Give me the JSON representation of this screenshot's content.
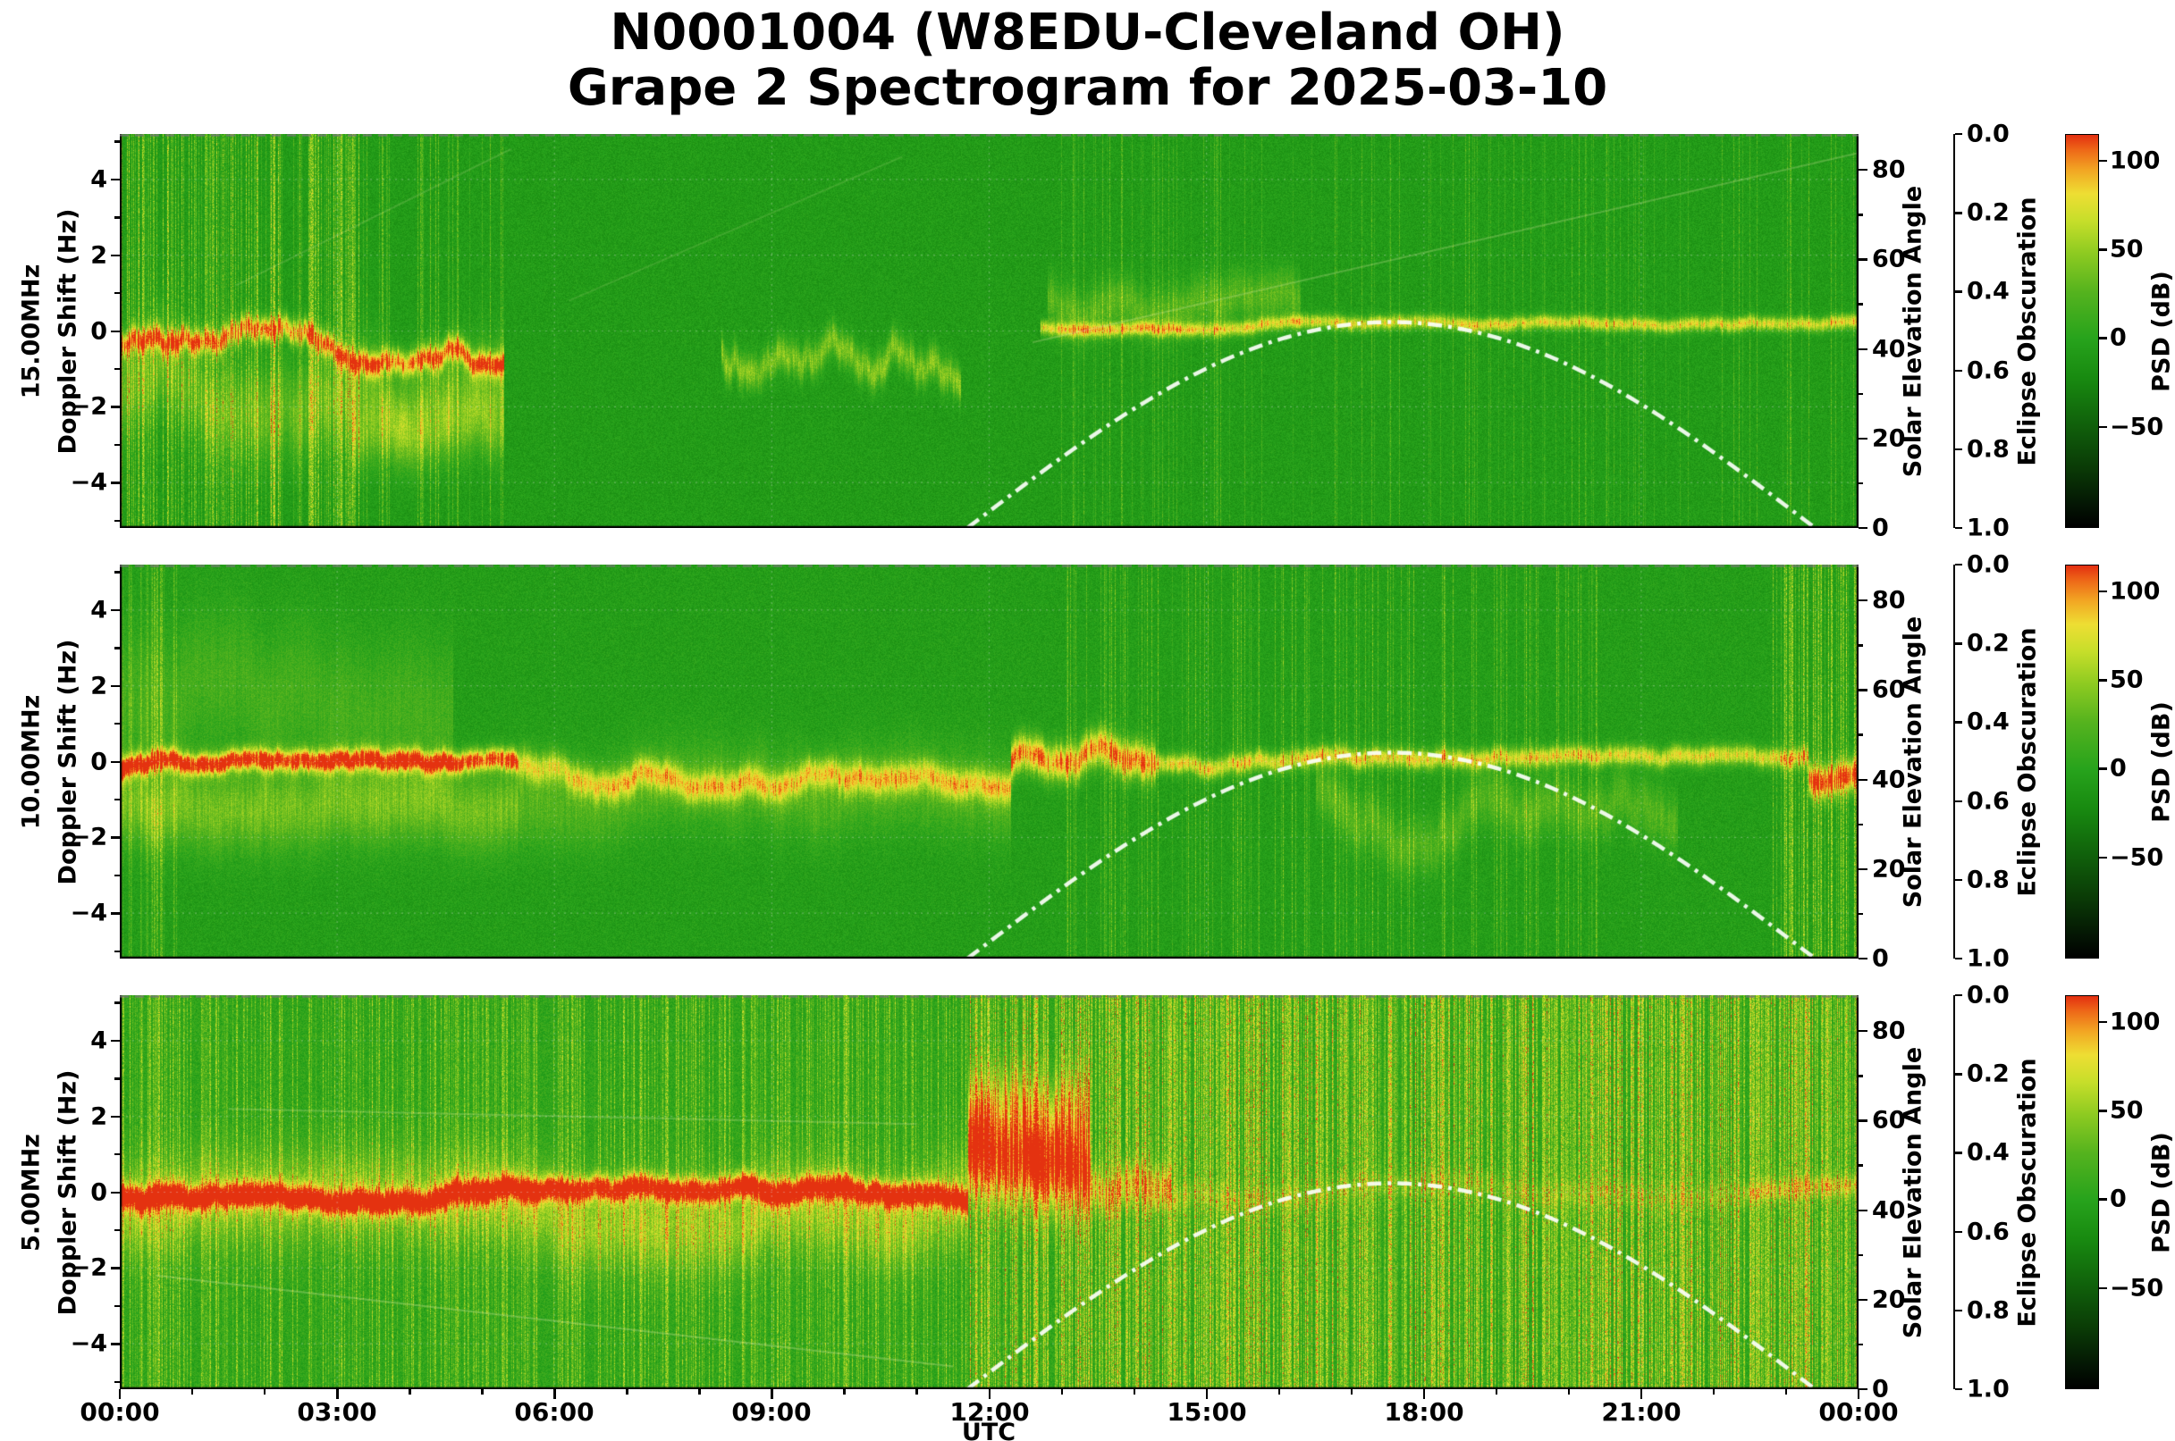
{
  "figure": {
    "title_line1": "N0001004 (W8EDU-Cleveland OH)",
    "title_line2": "Grape 2 Spectrogram for 2025-03-10"
  },
  "axes": {
    "x_label": "UTC",
    "x_ticks": [
      "00:00",
      "03:00",
      "06:00",
      "09:00",
      "12:00",
      "15:00",
      "18:00",
      "21:00",
      "00:00"
    ],
    "doppler_ticks": [
      "4",
      "2",
      "0",
      "−2",
      "−4"
    ],
    "solar_label": "Solar Elevation Angle",
    "solar_ticks": [
      "80",
      "60",
      "40",
      "20",
      "0"
    ],
    "eclipse_label": "Eclipse Obscuration",
    "eclipse_ticks": [
      "0.0",
      "0.2",
      "0.4",
      "0.6",
      "0.8",
      "1.0"
    ],
    "psd_label": "PSD (dB)",
    "psd_ticks": [
      "100",
      "50",
      "0",
      "−50"
    ]
  },
  "panels": [
    {
      "freq_label": "15.00MHz",
      "ylabel": "Doppler Shift (Hz)"
    },
    {
      "freq_label": "10.00MHz",
      "ylabel": "Doppler Shift (Hz)"
    },
    {
      "freq_label": "5.00MHz",
      "ylabel": "Doppler Shift (Hz)"
    }
  ],
  "chart_data": {
    "type": "heatmap",
    "subtype": "radio-doppler-spectrogram",
    "title": "N0001004 (W8EDU-Cleveland OH) Grape 2 Spectrogram for 2025-03-10",
    "station_node": "N0001004",
    "callsign": "W8EDU",
    "location": "Cleveland OH",
    "instrument": "Grape 2",
    "date": "2025-03-10",
    "grid": true,
    "x": {
      "label": "UTC",
      "range_hours": [
        0,
        24
      ],
      "tick_hours": [
        0,
        3,
        6,
        9,
        12,
        15,
        18,
        21,
        24
      ],
      "tick_labels": [
        "00:00",
        "03:00",
        "06:00",
        "09:00",
        "12:00",
        "15:00",
        "18:00",
        "21:00",
        "00:00"
      ]
    },
    "y": {
      "label": "Doppler Shift (Hz)",
      "range": [
        -5.2,
        5.2
      ],
      "ticks": [
        4,
        2,
        0,
        -2,
        -4
      ]
    },
    "psd": {
      "label": "PSD (dB)",
      "ticks_db": [
        100,
        50,
        0,
        -50
      ],
      "colorbar_range_db": [
        115,
        -107
      ]
    },
    "solar_elevation": {
      "label": "Solar Elevation Angle",
      "axis_range": [
        0,
        88
      ],
      "ticks": [
        0,
        20,
        40,
        60,
        80
      ],
      "line_style": "white dash-dot",
      "sunrise_utc_h": 11.7,
      "solar_noon_utc_h": 17.55,
      "sunset_utc_h": 23.4,
      "peak_deg": 46,
      "samples_utc_deg": [
        [
          12,
          4
        ],
        [
          13,
          14
        ],
        [
          14,
          24
        ],
        [
          15,
          32
        ],
        [
          16,
          39
        ],
        [
          17,
          44
        ],
        [
          17.55,
          46
        ],
        [
          18,
          45
        ],
        [
          19,
          42
        ],
        [
          20,
          35
        ],
        [
          21,
          26
        ],
        [
          22,
          16
        ],
        [
          23,
          5
        ],
        [
          23.4,
          0
        ]
      ]
    },
    "eclipse_obscuration": {
      "label": "Eclipse Obscuration",
      "axis_ticks": [
        0.0,
        0.2,
        0.4,
        0.6,
        0.8,
        1.0
      ],
      "axis_inverted": true,
      "max_obscuration_shown": 0.0,
      "note": "0.0 at top of axis; no obscuration curve visible on this date"
    },
    "panels": [
      {
        "frequency_mhz": 15.0,
        "label": "15.00MHz",
        "summary": "Strong wavy Doppler trace near 0 to -1 Hz with scatter down to -3 Hz from 00:00-05:15; signal weak/absent 05:15-12:40 with intermittent blobs 08:20-11:30; narrow steady bright trace near +0.2 Hz from about 12:45 through 24:00. Dense vertical interference streaks 00:00-03:30.",
        "render": {
          "seed": 11,
          "base": 0.45,
          "noise": 0.055,
          "bands": [
            [
              0,
              5.3,
              0.9,
              -0.35,
              0.22,
              0.55
            ],
            [
              0,
              5.3,
              0.32,
              -1.5,
              0.85,
              0.8
            ],
            [
              3.2,
              5.3,
              0.28,
              -2.3,
              0.6,
              0.6
            ],
            [
              8.3,
              11.6,
              0.45,
              -0.7,
              0.3,
              0.9
            ],
            [
              12.7,
              24,
              0.72,
              0.15,
              0.13,
              0.12
            ],
            [
              12.8,
              16.3,
              0.3,
              0.55,
              0.45,
              0.5
            ]
          ],
          "streaks": [
            [
              0,
              3.3,
              0.45,
              0.2
            ],
            [
              3.3,
              5.3,
              0.2,
              0.14
            ],
            [
              12.7,
              24,
              0.1,
              0.1
            ]
          ],
          "traces": [
            [
              12.6,
              -0.3,
              24,
              4.7,
              0.25
            ],
            [
              1.6,
              1.2,
              5.4,
              4.8,
              0.18
            ],
            [
              6.2,
              0.8,
              10.8,
              4.6,
              0.15
            ]
          ]
        }
      },
      {
        "frequency_mhz": 10.0,
        "label": "10.00MHz",
        "summary": "Continuous trace near 0 Hz all day: intense with red core (-0.2 Hz) 00:00-05:30, diffuse yellow 05:30-12:20, bright blob near +0.4 Hz 12:20-14:15, narrow trace at 0 Hz through the afternoon with a faint descending wiggle to about -2 Hz 16:30-21:30, red patch at far right edge.",
        "render": {
          "seed": 22,
          "base": 0.46,
          "noise": 0.055,
          "bands": [
            [
              0,
              5.5,
              1.08,
              -0.2,
              0.2,
              0.3
            ],
            [
              0,
              5.5,
              0.38,
              -0.9,
              0.75,
              0.5
            ],
            [
              0,
              4.6,
              0.2,
              1.6,
              1.3,
              0.8
            ],
            [
              5.5,
              12.3,
              0.62,
              -0.3,
              0.28,
              0.4
            ],
            [
              5.5,
              12.3,
              0.26,
              -1.0,
              0.8,
              0.5
            ],
            [
              12.3,
              14.3,
              0.95,
              0.4,
              0.33,
              0.45
            ],
            [
              14.3,
              23.3,
              0.72,
              0.0,
              0.18,
              0.2
            ],
            [
              16.5,
              21.5,
              0.26,
              -1.4,
              0.5,
              0.9
            ],
            [
              23.3,
              24,
              1.0,
              -0.25,
              0.3,
              0.3
            ]
          ],
          "streaks": [
            [
              0,
              0.8,
              0.25,
              0.12
            ],
            [
              13,
              20.5,
              0.18,
              0.13
            ],
            [
              22.8,
              24,
              0.5,
              0.18
            ]
          ],
          "traces": []
        }
      },
      {
        "frequency_mhz": 5.0,
        "label": "5.00MHz",
        "summary": "Bright noisy background with many vertical streaks. Strong trace with red core near 0 Hz from 00:00 to about 11:40; large bright enhancement rising to +2.5 Hz around 11:45-13:30 (dawn); trace fades after 14:00 leaving streaky background; weak line at 0 Hz returns 22:30-24:00.",
        "render": {
          "seed": 33,
          "base": 0.5,
          "noise": 0.07,
          "bands": [
            [
              0,
              11.7,
              1.05,
              -0.05,
              0.22,
              0.25
            ],
            [
              0,
              11.7,
              0.4,
              -0.5,
              0.85,
              0.45
            ],
            [
              11.7,
              13.4,
              1.0,
              0.6,
              0.8,
              0.5
            ],
            [
              11.7,
              13.4,
              0.45,
              1.9,
              0.7,
              0.5
            ],
            [
              13.4,
              14.5,
              0.55,
              0.1,
              0.4,
              0.4
            ],
            [
              14.5,
              22.4,
              0.2,
              0.0,
              0.25,
              0.25
            ],
            [
              22.4,
              24,
              0.42,
              0.0,
              0.2,
              0.2
            ]
          ],
          "streaks": [
            [
              0,
              11.7,
              0.35,
              0.15
            ],
            [
              11.7,
              24,
              0.6,
              0.24
            ]
          ],
          "traces": [
            [
              0.5,
              -2.2,
              11.5,
              -4.6,
              0.3
            ],
            [
              1.5,
              2.2,
              11.0,
              1.8,
              0.25
            ]
          ]
        }
      }
    ],
    "colormap_stops": [
      [
        0.0,
        "#000000"
      ],
      [
        0.06,
        "#041704"
      ],
      [
        0.15,
        "#0a3a06"
      ],
      [
        0.26,
        "#10600b"
      ],
      [
        0.38,
        "#188a10"
      ],
      [
        0.48,
        "#27a31c"
      ],
      [
        0.6,
        "#55b31e"
      ],
      [
        0.7,
        "#8fcb21"
      ],
      [
        0.78,
        "#c6de2a"
      ],
      [
        0.85,
        "#eede33"
      ],
      [
        0.91,
        "#f2a623"
      ],
      [
        0.96,
        "#ee6a18"
      ],
      [
        1.0,
        "#e32f10"
      ]
    ]
  }
}
